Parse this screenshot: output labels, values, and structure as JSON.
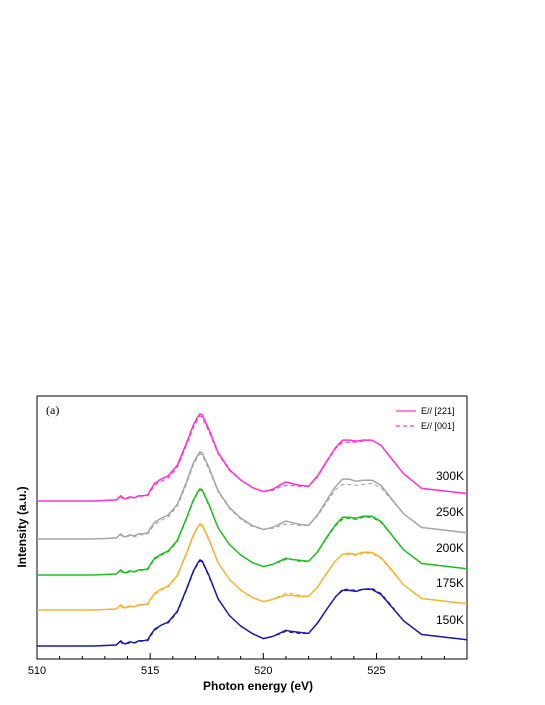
{
  "chart_data": {
    "type": "line",
    "panel_label": "(a)",
    "xlabel": "Photon energy (eV)",
    "ylabel": "Intensity (a.u.)",
    "xlim": [
      510,
      529
    ],
    "x_ticks": [
      510,
      515,
      520,
      525
    ],
    "y_ticks": [],
    "grid": false,
    "legend": {
      "position": "top-right",
      "entries": [
        {
          "label": "E// [221]",
          "style": "solid"
        },
        {
          "label": "E// [001]",
          "style": "dashed"
        }
      ]
    },
    "x": [
      510.0,
      512.5,
      513.5,
      513.6,
      513.7,
      513.8,
      513.9,
      514.1,
      514.3,
      514.5,
      514.7,
      514.9,
      515.0,
      515.2,
      515.5,
      515.8,
      516.2,
      516.6,
      516.9,
      517.1,
      517.2,
      517.3,
      517.6,
      518.0,
      518.5,
      519.0,
      519.5,
      520.0,
      520.4,
      520.8,
      521.0,
      521.2,
      521.6,
      522.0,
      522.4,
      522.8,
      523.2,
      523.5,
      523.8,
      524.1,
      524.4,
      524.8,
      525.2,
      525.6,
      526.2,
      527.0,
      529.0
    ],
    "series": [
      {
        "name": "300K",
        "color": "#ff33cc",
        "solid": [
          0.0,
          0.0,
          0.01,
          0.03,
          0.05,
          0.03,
          0.02,
          0.04,
          0.03,
          0.05,
          0.05,
          0.06,
          0.1,
          0.17,
          0.21,
          0.24,
          0.34,
          0.55,
          0.72,
          0.8,
          0.83,
          0.82,
          0.68,
          0.46,
          0.3,
          0.2,
          0.13,
          0.09,
          0.11,
          0.16,
          0.18,
          0.17,
          0.15,
          0.14,
          0.24,
          0.38,
          0.51,
          0.58,
          0.58,
          0.57,
          0.58,
          0.58,
          0.53,
          0.42,
          0.26,
          0.12,
          0.07
        ],
        "dashed": [
          0.0,
          0.0,
          0.01,
          0.02,
          0.04,
          0.02,
          0.02,
          0.03,
          0.03,
          0.04,
          0.05,
          0.05,
          0.09,
          0.15,
          0.19,
          0.22,
          0.32,
          0.53,
          0.7,
          0.78,
          0.81,
          0.8,
          0.66,
          0.45,
          0.29,
          0.2,
          0.13,
          0.09,
          0.1,
          0.14,
          0.15,
          0.15,
          0.14,
          0.14,
          0.23,
          0.37,
          0.5,
          0.56,
          0.56,
          0.56,
          0.57,
          0.58,
          0.53,
          0.42,
          0.26,
          0.12,
          0.07
        ]
      },
      {
        "name": "250K",
        "color": "#a6a6a6",
        "solid": [
          0.0,
          0.0,
          0.01,
          0.03,
          0.05,
          0.03,
          0.02,
          0.04,
          0.03,
          0.05,
          0.05,
          0.06,
          0.1,
          0.16,
          0.2,
          0.23,
          0.33,
          0.54,
          0.72,
          0.8,
          0.83,
          0.82,
          0.68,
          0.46,
          0.3,
          0.2,
          0.13,
          0.09,
          0.11,
          0.15,
          0.17,
          0.16,
          0.14,
          0.13,
          0.23,
          0.37,
          0.5,
          0.57,
          0.57,
          0.55,
          0.56,
          0.56,
          0.51,
          0.4,
          0.24,
          0.11,
          0.06
        ],
        "dashed": [
          0.0,
          0.0,
          0.01,
          0.02,
          0.04,
          0.02,
          0.02,
          0.03,
          0.02,
          0.04,
          0.04,
          0.05,
          0.08,
          0.14,
          0.18,
          0.21,
          0.31,
          0.52,
          0.7,
          0.78,
          0.81,
          0.8,
          0.66,
          0.45,
          0.29,
          0.19,
          0.12,
          0.09,
          0.1,
          0.13,
          0.14,
          0.14,
          0.13,
          0.13,
          0.22,
          0.35,
          0.47,
          0.52,
          0.52,
          0.51,
          0.52,
          0.53,
          0.49,
          0.39,
          0.24,
          0.11,
          0.06
        ]
      },
      {
        "name": "200K",
        "color": "#22bb22",
        "solid": [
          0.0,
          0.0,
          0.01,
          0.03,
          0.05,
          0.03,
          0.02,
          0.04,
          0.03,
          0.05,
          0.05,
          0.06,
          0.1,
          0.16,
          0.2,
          0.23,
          0.33,
          0.54,
          0.71,
          0.79,
          0.82,
          0.81,
          0.67,
          0.45,
          0.29,
          0.19,
          0.12,
          0.08,
          0.1,
          0.14,
          0.16,
          0.15,
          0.14,
          0.13,
          0.22,
          0.36,
          0.48,
          0.55,
          0.55,
          0.54,
          0.56,
          0.56,
          0.51,
          0.4,
          0.24,
          0.11,
          0.06
        ],
        "dashed": [
          0.0,
          0.0,
          0.01,
          0.02,
          0.04,
          0.02,
          0.02,
          0.03,
          0.03,
          0.04,
          0.05,
          0.05,
          0.09,
          0.15,
          0.19,
          0.22,
          0.32,
          0.53,
          0.7,
          0.78,
          0.81,
          0.8,
          0.66,
          0.45,
          0.29,
          0.19,
          0.12,
          0.08,
          0.1,
          0.13,
          0.15,
          0.15,
          0.13,
          0.13,
          0.22,
          0.35,
          0.47,
          0.53,
          0.54,
          0.53,
          0.55,
          0.55,
          0.5,
          0.4,
          0.24,
          0.11,
          0.06
        ]
      },
      {
        "name": "175K",
        "color": "#f5b335",
        "solid": [
          0.0,
          0.0,
          0.01,
          0.03,
          0.05,
          0.03,
          0.02,
          0.04,
          0.03,
          0.05,
          0.05,
          0.06,
          0.1,
          0.16,
          0.2,
          0.23,
          0.33,
          0.54,
          0.71,
          0.79,
          0.82,
          0.81,
          0.67,
          0.45,
          0.29,
          0.19,
          0.12,
          0.08,
          0.1,
          0.13,
          0.14,
          0.14,
          0.13,
          0.13,
          0.22,
          0.35,
          0.47,
          0.53,
          0.54,
          0.53,
          0.55,
          0.55,
          0.5,
          0.4,
          0.24,
          0.11,
          0.06
        ],
        "dashed": [
          0.0,
          0.0,
          0.01,
          0.02,
          0.04,
          0.02,
          0.02,
          0.03,
          0.03,
          0.04,
          0.05,
          0.05,
          0.09,
          0.15,
          0.19,
          0.22,
          0.32,
          0.53,
          0.7,
          0.78,
          0.81,
          0.8,
          0.66,
          0.45,
          0.29,
          0.19,
          0.12,
          0.08,
          0.1,
          0.14,
          0.16,
          0.16,
          0.14,
          0.13,
          0.22,
          0.35,
          0.47,
          0.53,
          0.53,
          0.52,
          0.54,
          0.54,
          0.49,
          0.39,
          0.24,
          0.11,
          0.06
        ]
      },
      {
        "name": "150K",
        "color": "#1a1aaa",
        "solid": [
          0.0,
          0.0,
          0.01,
          0.03,
          0.05,
          0.03,
          0.02,
          0.04,
          0.03,
          0.05,
          0.05,
          0.06,
          0.1,
          0.16,
          0.2,
          0.23,
          0.33,
          0.54,
          0.71,
          0.79,
          0.82,
          0.81,
          0.67,
          0.45,
          0.29,
          0.19,
          0.12,
          0.07,
          0.09,
          0.13,
          0.15,
          0.14,
          0.13,
          0.12,
          0.22,
          0.35,
          0.47,
          0.53,
          0.53,
          0.52,
          0.54,
          0.54,
          0.49,
          0.39,
          0.24,
          0.11,
          0.06
        ],
        "dashed": [
          0.0,
          0.0,
          0.01,
          0.02,
          0.04,
          0.02,
          0.02,
          0.03,
          0.03,
          0.04,
          0.05,
          0.05,
          0.09,
          0.15,
          0.2,
          0.22,
          0.32,
          0.53,
          0.7,
          0.78,
          0.81,
          0.8,
          0.66,
          0.45,
          0.29,
          0.19,
          0.12,
          0.07,
          0.09,
          0.12,
          0.14,
          0.13,
          0.12,
          0.12,
          0.22,
          0.35,
          0.47,
          0.54,
          0.54,
          0.53,
          0.54,
          0.55,
          0.5,
          0.4,
          0.24,
          0.11,
          0.06
        ]
      }
    ]
  }
}
